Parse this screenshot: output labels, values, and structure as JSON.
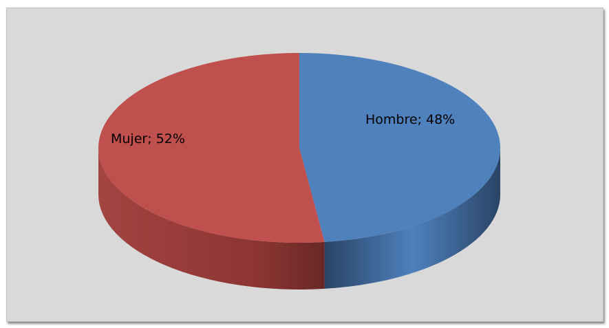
{
  "chart_data": {
    "type": "pie",
    "style": "3d",
    "categories": [
      "Hombre",
      "Mujer"
    ],
    "values": [
      48,
      52
    ],
    "labels": [
      "Hombre; 48%",
      "Mujer; 52%"
    ],
    "colors": [
      "#4f81bd",
      "#c0504d"
    ],
    "side_colors": [
      "#2a4466",
      "#8c3532"
    ],
    "background": "#d9d9d9",
    "title": "",
    "legend": "none"
  }
}
